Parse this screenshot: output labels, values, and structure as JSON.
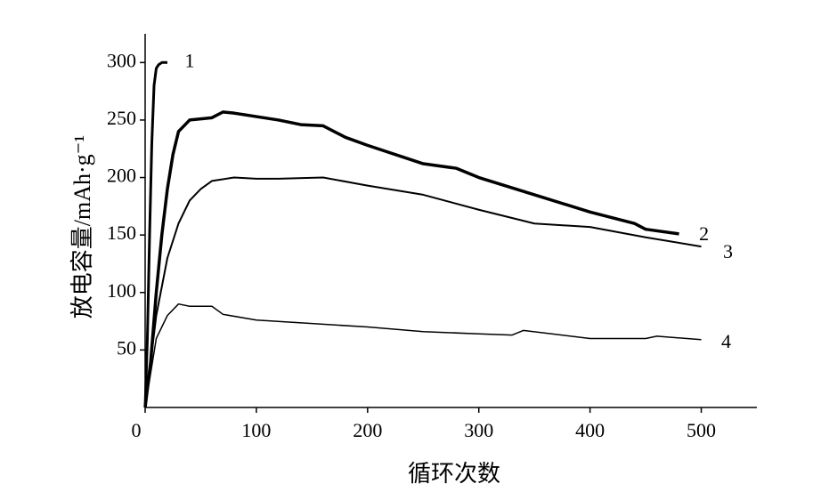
{
  "chart_data": {
    "type": "line",
    "x_label": "循环次数",
    "y_label": "放电容量/mAh·g⁻¹",
    "xlim": [
      0,
      550
    ],
    "ylim": [
      0,
      325
    ],
    "xticks": [
      0,
      100,
      200,
      300,
      400,
      500
    ],
    "yticks": [
      50,
      100,
      150,
      200,
      250,
      300
    ],
    "grid": false,
    "series": [
      {
        "name": "1",
        "color": "#000000",
        "x": [
          0,
          2,
          4,
          6,
          8,
          10,
          12,
          15,
          20
        ],
        "values": [
          0,
          60,
          150,
          230,
          280,
          295,
          298,
          300,
          300
        ]
      },
      {
        "name": "2",
        "color": "#000000",
        "x": [
          0,
          5,
          10,
          15,
          20,
          25,
          30,
          40,
          50,
          60,
          70,
          80,
          100,
          120,
          140,
          160,
          180,
          200,
          250,
          280,
          300,
          350,
          400,
          440,
          450,
          480
        ],
        "values": [
          0,
          40,
          100,
          150,
          190,
          220,
          240,
          250,
          251,
          252,
          257,
          256,
          253,
          250,
          246,
          245,
          235,
          228,
          212,
          208,
          200,
          185,
          170,
          160,
          155,
          151
        ]
      },
      {
        "name": "3",
        "color": "#000000",
        "x": [
          0,
          10,
          20,
          30,
          40,
          50,
          60,
          80,
          100,
          120,
          160,
          200,
          250,
          300,
          350,
          400,
          450,
          500
        ],
        "values": [
          0,
          80,
          130,
          160,
          180,
          190,
          197,
          200,
          199,
          199,
          200,
          193,
          185,
          172,
          160,
          157,
          148,
          140
        ]
      },
      {
        "name": "4",
        "color": "#000000",
        "x": [
          0,
          10,
          20,
          30,
          40,
          50,
          60,
          70,
          100,
          150,
          200,
          250,
          300,
          330,
          340,
          400,
          450,
          460,
          500
        ],
        "values": [
          0,
          60,
          80,
          90,
          88,
          88,
          88,
          81,
          76,
          73,
          70,
          66,
          64,
          63,
          67,
          60,
          60,
          62,
          59
        ]
      }
    ]
  }
}
